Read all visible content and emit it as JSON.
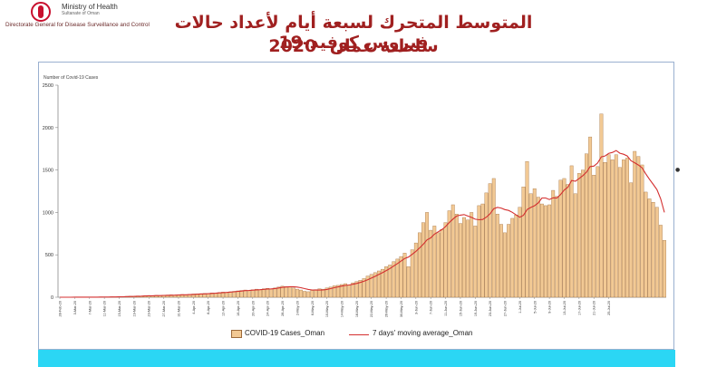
{
  "header": {
    "logo_en": "Ministry of Health",
    "logo_sub": "Sultanate of Oman",
    "logo_dept": "Directorate General for Disease Surveillance and Control",
    "title_line1": "المتوسط المتحرك لسبعة أيام لأعداد حالات فيروس كوفيد-19",
    "title_line2": "سلطنة عمان- 2020"
  },
  "colors": {
    "title": "#a02020",
    "bar_fill": "#f2c994",
    "bar_stroke": "#9c6a3a",
    "line": "#d42f2f",
    "footer": "#2bd6f4"
  },
  "chart_data": {
    "type": "bar",
    "ylabel": "Number of Covid-19 Cases",
    "ylim": [
      0,
      2500
    ],
    "yticks": [
      0,
      500,
      1000,
      1500,
      2000,
      2500
    ],
    "grid": false,
    "legend_position": "bottom",
    "x_tick_labels": [
      "28-Feb-20",
      "3-Mar-20",
      "7-Mar-20",
      "11-Mar-20",
      "15-Mar-20",
      "19-Mar-20",
      "23-Mar-20",
      "27-Mar-20",
      "31-Mar-20",
      "4-Apr-20",
      "8-Apr-20",
      "12-Apr-20",
      "16-Apr-20",
      "20-Apr-20",
      "24-Apr-20",
      "28-Apr-20",
      "2-May-20",
      "6-May-20",
      "10-May-20",
      "14-May-20",
      "18-May-20",
      "22-May-20",
      "26-May-20",
      "30-May-20",
      "3-Jun-20",
      "7-Jun-20",
      "11-Jun-20",
      "15-Jun-20",
      "19-Jun-20",
      "23-Jun-20",
      "27-Jun-20",
      "1-Jul-20",
      "5-Jul-20",
      "9-Jul-20",
      "13-Jul-20",
      "17-Jul-20",
      "21-Jul-20",
      "25-Jul-20"
    ],
    "series": [
      {
        "name": "COVID-19 Cases_Oman",
        "type": "bar",
        "values": [
          0,
          1,
          1,
          0,
          2,
          0,
          3,
          2,
          1,
          1,
          0,
          4,
          2,
          3,
          5,
          4,
          6,
          8,
          10,
          12,
          11,
          15,
          14,
          18,
          20,
          16,
          22,
          19,
          24,
          26,
          28,
          25,
          30,
          32,
          27,
          35,
          38,
          40,
          42,
          45,
          44,
          50,
          48,
          55,
          60,
          58,
          64,
          70,
          75,
          80,
          85,
          78,
          88,
          95,
          90,
          100,
          105,
          98,
          110,
          120,
          130,
          125,
          120,
          110,
          95,
          85,
          70,
          65,
          80,
          90,
          100,
          95,
          110,
          120,
          135,
          140,
          150,
          160,
          145,
          170,
          185,
          200,
          220,
          250,
          270,
          290,
          310,
          330,
          360,
          380,
          420,
          450,
          480,
          520,
          360,
          560,
          640,
          760,
          880,
          1000,
          790,
          840,
          760,
          800,
          880,
          1020,
          1090,
          980,
          870,
          940,
          910,
          1000,
          840,
          1080,
          1100,
          1230,
          1340,
          1400,
          980,
          860,
          760,
          860,
          930,
          970,
          1060,
          1300,
          1600,
          1220,
          1280,
          1180,
          1100,
          1080,
          1090,
          1260,
          1190,
          1380,
          1400,
          1330,
          1550,
          1220,
          1460,
          1500,
          1690,
          1890,
          1440,
          1540,
          2160,
          1590,
          1680,
          1620,
          1680,
          1530,
          1620,
          1640,
          1350,
          1720,
          1660,
          1560,
          1240,
          1160,
          1120,
          1060,
          850,
          670
        ]
      },
      {
        "name": "7 days' moving average_Oman",
        "type": "line",
        "values": [
          0,
          0,
          0,
          0,
          1,
          1,
          1,
          1,
          1,
          1,
          1,
          2,
          2,
          2,
          3,
          3,
          4,
          5,
          7,
          9,
          10,
          12,
          13,
          15,
          17,
          17,
          19,
          19,
          21,
          22,
          24,
          25,
          27,
          29,
          29,
          31,
          33,
          35,
          38,
          40,
          42,
          45,
          47,
          51,
          55,
          57,
          61,
          64,
          68,
          73,
          78,
          79,
          83,
          87,
          89,
          93,
          97,
          98,
          103,
          109,
          116,
          121,
          124,
          124,
          120,
          112,
          102,
          92,
          85,
          84,
          84,
          86,
          92,
          101,
          112,
          122,
          131,
          139,
          144,
          153,
          162,
          174,
          188,
          205,
          225,
          246,
          268,
          290,
          314,
          339,
          368,
          396,
          426,
          457,
          473,
          505,
          541,
          581,
          625,
          676,
          700,
          744,
          771,
          797,
          833,
          880,
          921,
          957,
          968,
          974,
          957,
          941,
          920,
          913,
          917,
          944,
          984,
          1044,
          1060,
          1051,
          1033,
          1023,
          1001,
          971,
          943,
          966,
          1034,
          1059,
          1079,
          1111,
          1170,
          1170,
          1152,
          1172,
          1169,
          1210,
          1264,
          1298,
          1377,
          1367,
          1399,
          1433,
          1474,
          1541,
          1546,
          1582,
          1655,
          1666,
          1697,
          1707,
          1730,
          1698,
          1686,
          1666,
          1610,
          1585,
          1559,
          1526,
          1454,
          1390,
          1330,
          1268,
          1160,
          1000
        ]
      }
    ]
  }
}
